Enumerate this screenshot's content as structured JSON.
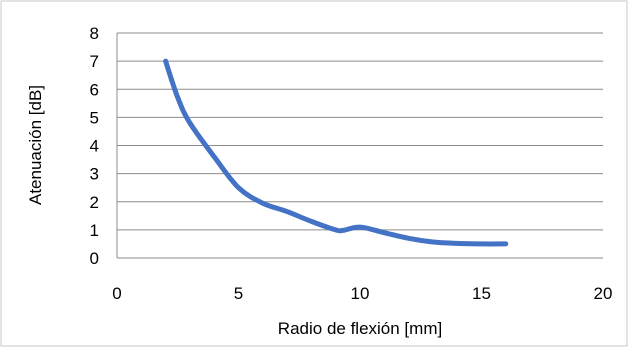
{
  "chart_data": {
    "type": "line",
    "title": "",
    "xlabel": "Radio de flexión [mm]",
    "ylabel": "Atenuación  [dB]",
    "xlim": [
      0,
      20
    ],
    "ylim": [
      0,
      8
    ],
    "xticks": [
      0,
      5,
      10,
      15,
      20
    ],
    "yticks": [
      0,
      1,
      2,
      3,
      4,
      5,
      6,
      7,
      8
    ],
    "grid": "horizontal",
    "legend": "none",
    "series": [
      {
        "color": "#4472C4",
        "x": [
          2,
          2.5,
          3,
          4,
          5,
          6,
          7,
          8,
          9,
          9.3,
          10,
          11,
          12,
          13,
          14,
          15,
          16
        ],
        "y": [
          7.0,
          5.7,
          4.8,
          3.6,
          2.5,
          1.95,
          1.65,
          1.3,
          1.0,
          0.98,
          1.1,
          0.9,
          0.7,
          0.57,
          0.52,
          0.5,
          0.5
        ]
      }
    ]
  }
}
